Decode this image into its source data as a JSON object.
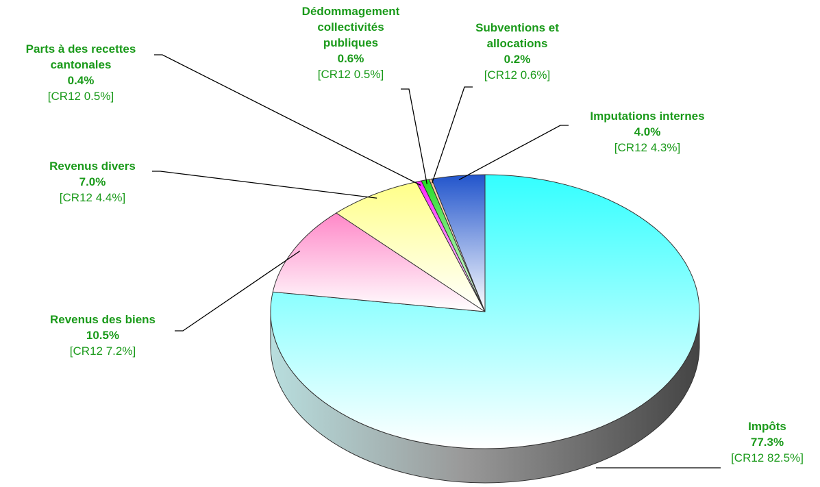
{
  "chart_data": {
    "type": "pie",
    "categories": [
      "Impôts",
      "Revenus des biens",
      "Revenus divers",
      "Parts à des recettes\ncantonales",
      "Dédommagement\ncollectivités\npubliques",
      "Subventions et\nallocations",
      "Imputations internes"
    ],
    "values": [
      77.3,
      10.5,
      7.0,
      0.4,
      0.6,
      0.2,
      4.0
    ],
    "value_labels": [
      "77.3%",
      "10.5%",
      "7.0%",
      "0.4%",
      "0.6%",
      "0.2%",
      "4.0%"
    ],
    "comparison_labels": [
      "[CR12 82.5%]",
      "[CR12 7.2%]",
      "[CR12 4.4%]",
      "[CR12 0.5%]",
      "[CR12 0.5%]",
      "[CR12 0.6%]",
      "[CR12 4.3%]"
    ],
    "colors": [
      "#33ffff",
      "#ff88c8",
      "#ffff88",
      "#ff22ff",
      "#22dd22",
      "#ffcc99",
      "#2255cc"
    ]
  }
}
